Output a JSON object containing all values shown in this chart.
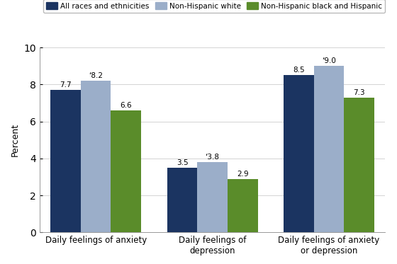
{
  "categories": [
    "Daily feelings of anxiety",
    "Daily feelings of\ndepression",
    "Daily feelings of anxiety\nor depression"
  ],
  "series": {
    "All races and ethnicities": [
      7.7,
      3.5,
      8.5
    ],
    "Non-Hispanic white": [
      8.2,
      3.8,
      9.0
    ],
    "Non-Hispanic black and Hispanic": [
      6.6,
      2.9,
      7.3
    ]
  },
  "colors": {
    "All races and ethnicities": "#1b3461",
    "Non-Hispanic white": "#9baec9",
    "Non-Hispanic black and Hispanic": "#5a8c2a"
  },
  "legend_labels": [
    "All races and ethnicities",
    "Non-Hispanic white",
    "Non-Hispanic black and Hispanic"
  ],
  "ylabel": "Percent",
  "ylim": [
    0,
    10
  ],
  "yticks": [
    0,
    2,
    4,
    6,
    8,
    10
  ],
  "bar_width": 0.28,
  "group_positions": [
    0.42,
    1.5,
    2.58
  ],
  "value_labels": {
    "All races and ethnicities": [
      "7.7",
      "3.5",
      "8.5"
    ],
    "Non-Hispanic white": [
      "‘8.2",
      "‘3.8",
      "‘9.0"
    ],
    "Non-Hispanic black and Hispanic": [
      "6.6",
      "2.9",
      "7.3"
    ]
  }
}
